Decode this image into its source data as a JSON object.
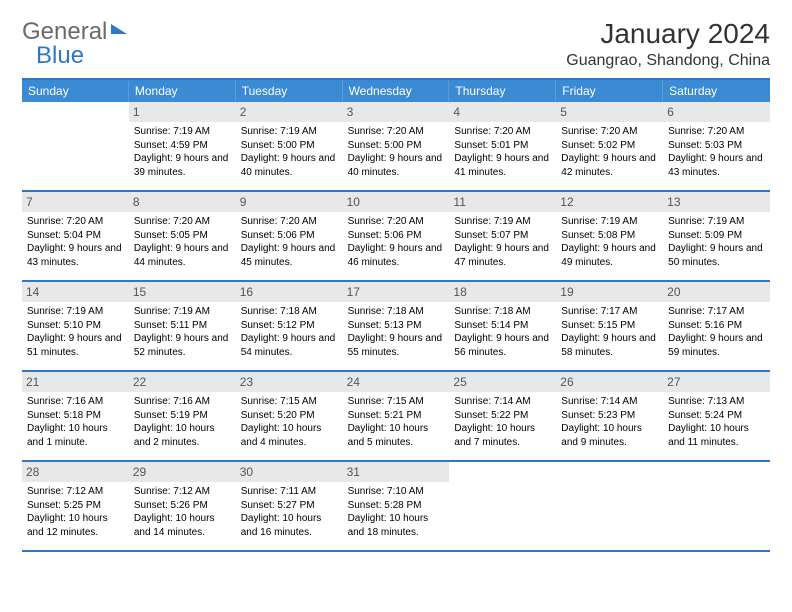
{
  "logo": {
    "text1": "General",
    "text2": "Blue"
  },
  "title": "January 2024",
  "location": "Guangrao, Shandong, China",
  "weekdays": [
    "Sunday",
    "Monday",
    "Tuesday",
    "Wednesday",
    "Thursday",
    "Friday",
    "Saturday"
  ],
  "colors": {
    "header_bar": "#3b8bd4",
    "border": "#2f78c4",
    "daynum_bg": "#e8e8e8"
  },
  "weeks": [
    [
      {
        "num": "",
        "sunrise": "",
        "sunset": "",
        "daylight": ""
      },
      {
        "num": "1",
        "sunrise": "Sunrise: 7:19 AM",
        "sunset": "Sunset: 4:59 PM",
        "daylight": "Daylight: 9 hours and 39 minutes."
      },
      {
        "num": "2",
        "sunrise": "Sunrise: 7:19 AM",
        "sunset": "Sunset: 5:00 PM",
        "daylight": "Daylight: 9 hours and 40 minutes."
      },
      {
        "num": "3",
        "sunrise": "Sunrise: 7:20 AM",
        "sunset": "Sunset: 5:00 PM",
        "daylight": "Daylight: 9 hours and 40 minutes."
      },
      {
        "num": "4",
        "sunrise": "Sunrise: 7:20 AM",
        "sunset": "Sunset: 5:01 PM",
        "daylight": "Daylight: 9 hours and 41 minutes."
      },
      {
        "num": "5",
        "sunrise": "Sunrise: 7:20 AM",
        "sunset": "Sunset: 5:02 PM",
        "daylight": "Daylight: 9 hours and 42 minutes."
      },
      {
        "num": "6",
        "sunrise": "Sunrise: 7:20 AM",
        "sunset": "Sunset: 5:03 PM",
        "daylight": "Daylight: 9 hours and 43 minutes."
      }
    ],
    [
      {
        "num": "7",
        "sunrise": "Sunrise: 7:20 AM",
        "sunset": "Sunset: 5:04 PM",
        "daylight": "Daylight: 9 hours and 43 minutes."
      },
      {
        "num": "8",
        "sunrise": "Sunrise: 7:20 AM",
        "sunset": "Sunset: 5:05 PM",
        "daylight": "Daylight: 9 hours and 44 minutes."
      },
      {
        "num": "9",
        "sunrise": "Sunrise: 7:20 AM",
        "sunset": "Sunset: 5:06 PM",
        "daylight": "Daylight: 9 hours and 45 minutes."
      },
      {
        "num": "10",
        "sunrise": "Sunrise: 7:20 AM",
        "sunset": "Sunset: 5:06 PM",
        "daylight": "Daylight: 9 hours and 46 minutes."
      },
      {
        "num": "11",
        "sunrise": "Sunrise: 7:19 AM",
        "sunset": "Sunset: 5:07 PM",
        "daylight": "Daylight: 9 hours and 47 minutes."
      },
      {
        "num": "12",
        "sunrise": "Sunrise: 7:19 AM",
        "sunset": "Sunset: 5:08 PM",
        "daylight": "Daylight: 9 hours and 49 minutes."
      },
      {
        "num": "13",
        "sunrise": "Sunrise: 7:19 AM",
        "sunset": "Sunset: 5:09 PM",
        "daylight": "Daylight: 9 hours and 50 minutes."
      }
    ],
    [
      {
        "num": "14",
        "sunrise": "Sunrise: 7:19 AM",
        "sunset": "Sunset: 5:10 PM",
        "daylight": "Daylight: 9 hours and 51 minutes."
      },
      {
        "num": "15",
        "sunrise": "Sunrise: 7:19 AM",
        "sunset": "Sunset: 5:11 PM",
        "daylight": "Daylight: 9 hours and 52 minutes."
      },
      {
        "num": "16",
        "sunrise": "Sunrise: 7:18 AM",
        "sunset": "Sunset: 5:12 PM",
        "daylight": "Daylight: 9 hours and 54 minutes."
      },
      {
        "num": "17",
        "sunrise": "Sunrise: 7:18 AM",
        "sunset": "Sunset: 5:13 PM",
        "daylight": "Daylight: 9 hours and 55 minutes."
      },
      {
        "num": "18",
        "sunrise": "Sunrise: 7:18 AM",
        "sunset": "Sunset: 5:14 PM",
        "daylight": "Daylight: 9 hours and 56 minutes."
      },
      {
        "num": "19",
        "sunrise": "Sunrise: 7:17 AM",
        "sunset": "Sunset: 5:15 PM",
        "daylight": "Daylight: 9 hours and 58 minutes."
      },
      {
        "num": "20",
        "sunrise": "Sunrise: 7:17 AM",
        "sunset": "Sunset: 5:16 PM",
        "daylight": "Daylight: 9 hours and 59 minutes."
      }
    ],
    [
      {
        "num": "21",
        "sunrise": "Sunrise: 7:16 AM",
        "sunset": "Sunset: 5:18 PM",
        "daylight": "Daylight: 10 hours and 1 minute."
      },
      {
        "num": "22",
        "sunrise": "Sunrise: 7:16 AM",
        "sunset": "Sunset: 5:19 PM",
        "daylight": "Daylight: 10 hours and 2 minutes."
      },
      {
        "num": "23",
        "sunrise": "Sunrise: 7:15 AM",
        "sunset": "Sunset: 5:20 PM",
        "daylight": "Daylight: 10 hours and 4 minutes."
      },
      {
        "num": "24",
        "sunrise": "Sunrise: 7:15 AM",
        "sunset": "Sunset: 5:21 PM",
        "daylight": "Daylight: 10 hours and 5 minutes."
      },
      {
        "num": "25",
        "sunrise": "Sunrise: 7:14 AM",
        "sunset": "Sunset: 5:22 PM",
        "daylight": "Daylight: 10 hours and 7 minutes."
      },
      {
        "num": "26",
        "sunrise": "Sunrise: 7:14 AM",
        "sunset": "Sunset: 5:23 PM",
        "daylight": "Daylight: 10 hours and 9 minutes."
      },
      {
        "num": "27",
        "sunrise": "Sunrise: 7:13 AM",
        "sunset": "Sunset: 5:24 PM",
        "daylight": "Daylight: 10 hours and 11 minutes."
      }
    ],
    [
      {
        "num": "28",
        "sunrise": "Sunrise: 7:12 AM",
        "sunset": "Sunset: 5:25 PM",
        "daylight": "Daylight: 10 hours and 12 minutes."
      },
      {
        "num": "29",
        "sunrise": "Sunrise: 7:12 AM",
        "sunset": "Sunset: 5:26 PM",
        "daylight": "Daylight: 10 hours and 14 minutes."
      },
      {
        "num": "30",
        "sunrise": "Sunrise: 7:11 AM",
        "sunset": "Sunset: 5:27 PM",
        "daylight": "Daylight: 10 hours and 16 minutes."
      },
      {
        "num": "31",
        "sunrise": "Sunrise: 7:10 AM",
        "sunset": "Sunset: 5:28 PM",
        "daylight": "Daylight: 10 hours and 18 minutes."
      },
      {
        "num": "",
        "sunrise": "",
        "sunset": "",
        "daylight": ""
      },
      {
        "num": "",
        "sunrise": "",
        "sunset": "",
        "daylight": ""
      },
      {
        "num": "",
        "sunrise": "",
        "sunset": "",
        "daylight": ""
      }
    ]
  ]
}
